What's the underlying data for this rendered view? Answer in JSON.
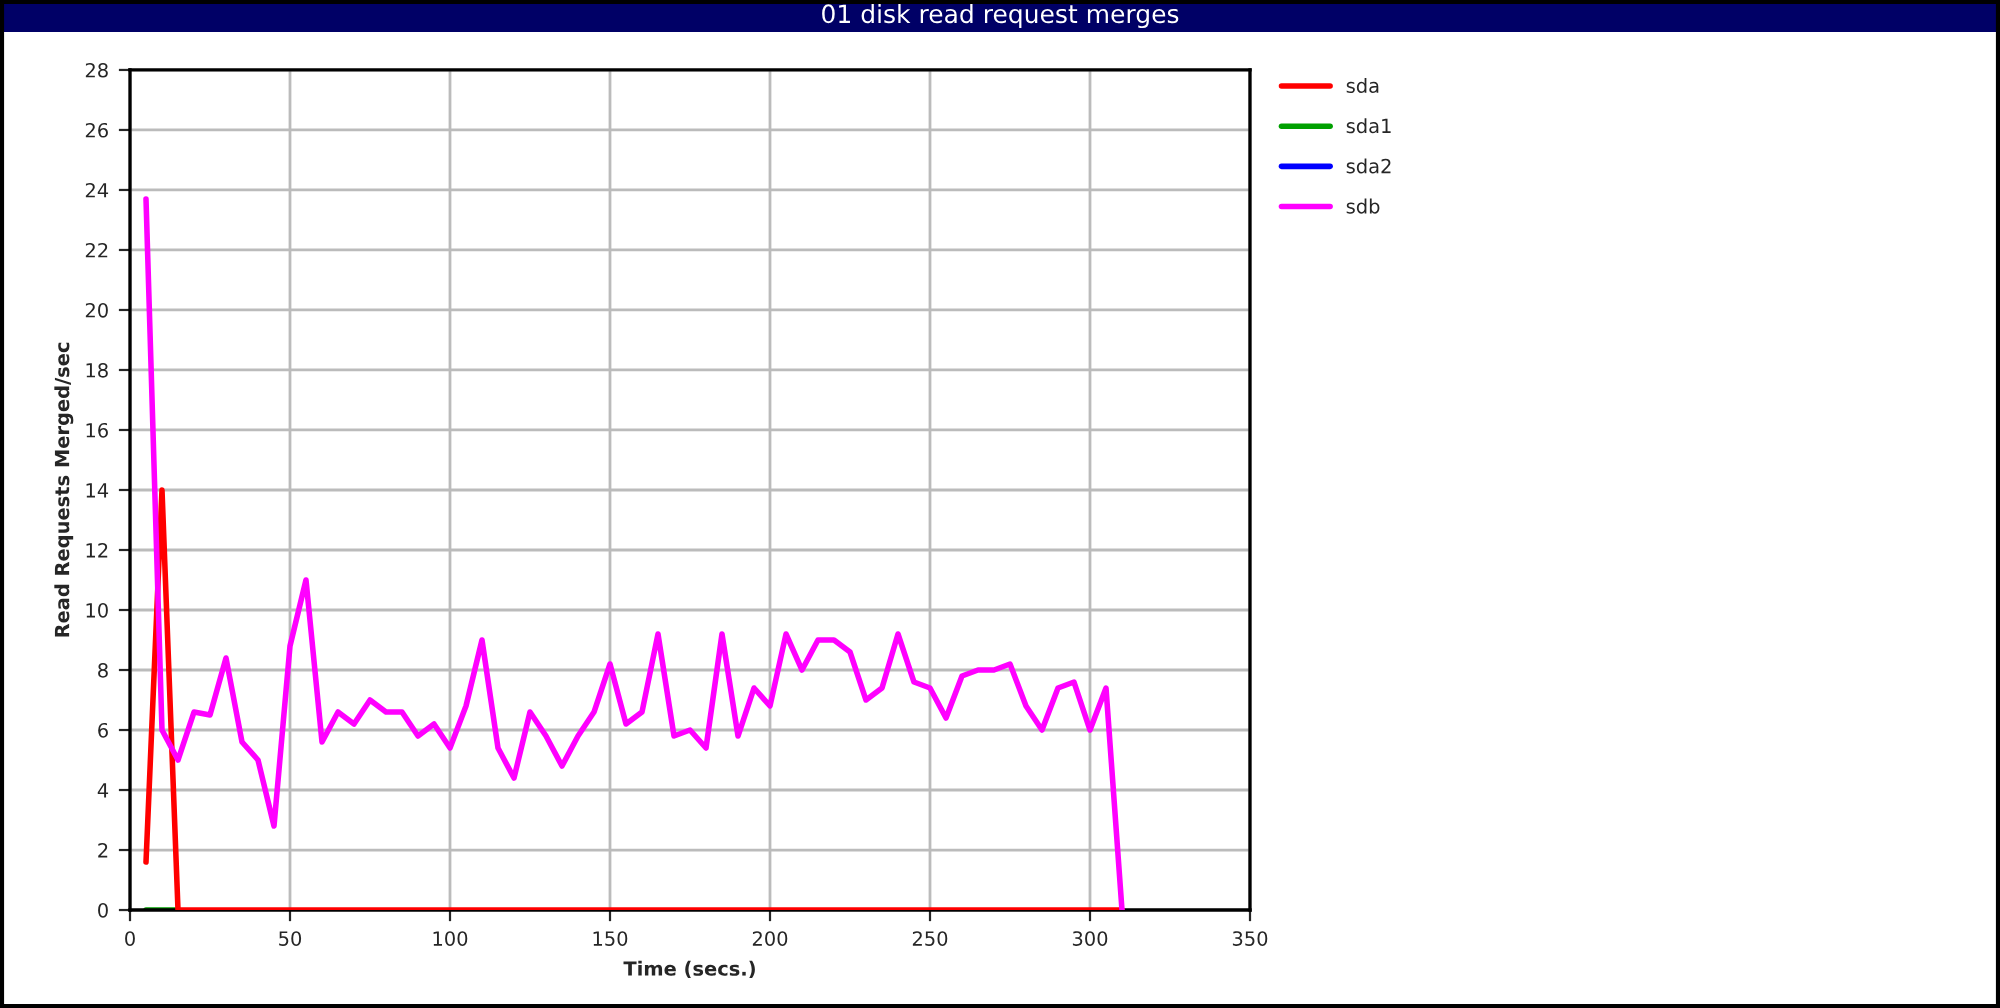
{
  "chart_data": {
    "type": "line",
    "title": "01 disk read request merges",
    "xlabel": "Time (secs.)",
    "ylabel": "Read Requests Merged/sec",
    "xlim": [
      0,
      350
    ],
    "xticks": [
      0,
      50,
      100,
      150,
      200,
      250,
      300,
      350
    ],
    "ylim": [
      0,
      28
    ],
    "yticks": [
      0,
      2,
      4,
      6,
      8,
      10,
      12,
      14,
      16,
      18,
      20,
      22,
      24,
      26,
      28
    ],
    "grid": true,
    "legend": "top right",
    "marker": "none",
    "line_style": "solid",
    "series": [
      {
        "name": "sda",
        "color": "#ff0000",
        "x": [
          5,
          10,
          15,
          310
        ],
        "values": [
          1.6,
          14,
          0,
          0
        ]
      },
      {
        "name": "sda1",
        "color": "#00a000",
        "x": [
          5,
          10,
          15
        ],
        "values": [
          0,
          0,
          0
        ]
      },
      {
        "name": "sda2",
        "color": "#0000ff"
      },
      {
        "name": "sdb",
        "color": "#ff00ff",
        "x": [
          5,
          10,
          15,
          20,
          25,
          30,
          35,
          40,
          45,
          50,
          55,
          60,
          65,
          70,
          75,
          80,
          85,
          90,
          95,
          100,
          105,
          110,
          115,
          120,
          125,
          130,
          135,
          140,
          145,
          150,
          155,
          160,
          165,
          170,
          175,
          180,
          185,
          190,
          195,
          200,
          205,
          210,
          215,
          220,
          225,
          230,
          235,
          240,
          245,
          250,
          255,
          260,
          265,
          270,
          275,
          280,
          285,
          290,
          295,
          300,
          305,
          310
        ],
        "values": [
          23.7,
          6.0,
          5.0,
          6.6,
          6.5,
          8.4,
          5.6,
          5.0,
          2.8,
          8.8,
          11.0,
          5.6,
          6.6,
          6.2,
          7.0,
          6.6,
          6.6,
          5.8,
          6.2,
          5.4,
          6.8,
          9.0,
          5.4,
          4.4,
          6.6,
          5.8,
          4.8,
          5.8,
          6.6,
          8.2,
          6.2,
          6.6,
          9.2,
          5.8,
          6.0,
          5.4,
          9.2,
          5.8,
          7.4,
          6.8,
          9.2,
          8.0,
          9.0,
          9.0,
          8.6,
          7.0,
          7.4,
          9.2,
          7.6,
          7.4,
          6.4,
          7.8,
          8.0,
          8.0,
          8.2,
          6.8,
          6.0,
          7.4,
          7.6,
          6.0,
          7.4,
          0
        ]
      }
    ]
  }
}
